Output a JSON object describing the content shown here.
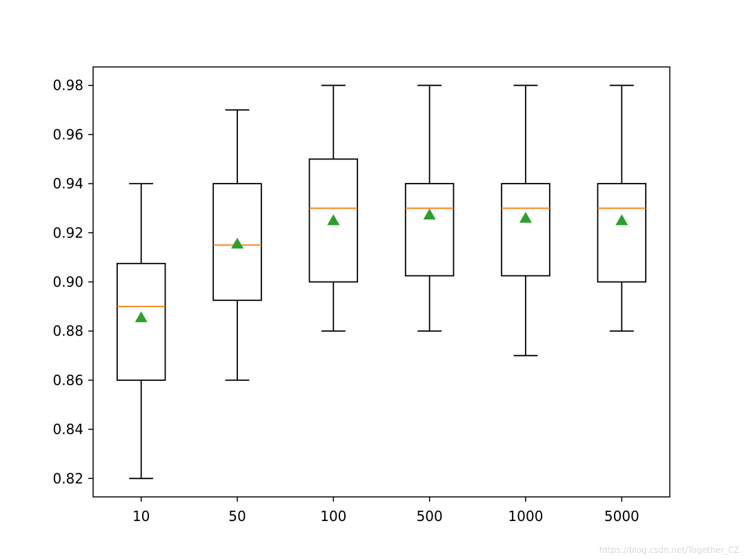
{
  "chart_data": {
    "type": "box",
    "title": "",
    "xlabel": "",
    "ylabel": "",
    "categories": [
      "10",
      "50",
      "100",
      "500",
      "1000",
      "5000"
    ],
    "boxes": [
      {
        "category": "10",
        "whisker_low": 0.82,
        "q1": 0.86,
        "median": 0.89,
        "q3": 0.9075,
        "whisker_high": 0.94,
        "mean": 0.8855
      },
      {
        "category": "50",
        "whisker_low": 0.86,
        "q1": 0.8925,
        "median": 0.915,
        "q3": 0.94,
        "whisker_high": 0.97,
        "mean": 0.9155
      },
      {
        "category": "100",
        "whisker_low": 0.88,
        "q1": 0.9,
        "median": 0.93,
        "q3": 0.95,
        "whisker_high": 0.98,
        "mean": 0.925
      },
      {
        "category": "500",
        "whisker_low": 0.88,
        "q1": 0.9025,
        "median": 0.93,
        "q3": 0.94,
        "whisker_high": 0.98,
        "mean": 0.9273
      },
      {
        "category": "1000",
        "whisker_low": 0.87,
        "q1": 0.9025,
        "median": 0.93,
        "q3": 0.94,
        "whisker_high": 0.98,
        "mean": 0.926
      },
      {
        "category": "5000",
        "whisker_low": 0.88,
        "q1": 0.9,
        "median": 0.93,
        "q3": 0.94,
        "whisker_high": 0.98,
        "mean": 0.925
      }
    ],
    "yticks": [
      "0.82",
      "0.84",
      "0.86",
      "0.88",
      "0.90",
      "0.92",
      "0.94",
      "0.96",
      "0.98"
    ],
    "ylim": [
      0.8125,
      0.9875
    ],
    "grid": false,
    "colors": {
      "box": "#000000",
      "median": "#ff7f0e",
      "mean": "#2ca02c"
    }
  },
  "watermark": "https://blog.csdn.net/Together_CZ"
}
